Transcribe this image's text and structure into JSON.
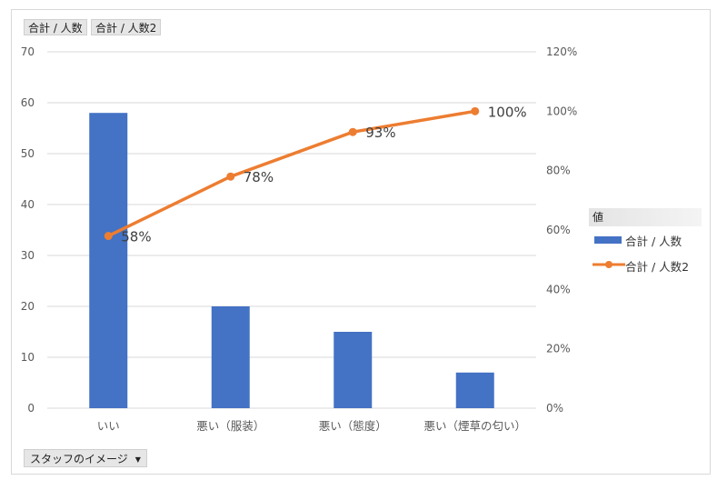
{
  "field_buttons": {
    "series1": "合計 / 人数",
    "series2": "合計 / 人数2"
  },
  "legend": {
    "title": "値",
    "items": [
      {
        "label": "合計 / 人数",
        "kind": "bar"
      },
      {
        "label": "合計 / 人数2",
        "kind": "line"
      }
    ]
  },
  "filter_button": {
    "label": "スタッフのイメージ"
  },
  "colors": {
    "bar": "#4472c4",
    "line": "#ed7d31",
    "grid": "#d9d9d9",
    "axis_text": "#595959"
  },
  "chart_data": {
    "type": "bar",
    "categories": [
      "いい",
      "悪い（服装）",
      "悪い（態度）",
      "悪い（煙草の匂い）"
    ],
    "series": [
      {
        "name": "合計 / 人数",
        "type": "bar",
        "axis": "left",
        "values": [
          58,
          20,
          15,
          7
        ]
      },
      {
        "name": "合計 / 人数2",
        "type": "line",
        "axis": "right",
        "values": [
          0.58,
          0.78,
          0.93,
          1.0
        ],
        "data_labels": [
          "58%",
          "78%",
          "93%",
          "100%"
        ]
      }
    ],
    "left_axis": {
      "min": 0,
      "max": 70,
      "step": 10,
      "ticks": [
        "0",
        "10",
        "20",
        "30",
        "40",
        "50",
        "60",
        "70"
      ]
    },
    "right_axis": {
      "min": 0,
      "max": 1.2,
      "step": 0.2,
      "ticks": [
        "0%",
        "20%",
        "40%",
        "60%",
        "80%",
        "100%",
        "120%"
      ]
    },
    "grid": true,
    "legend_position": "right"
  }
}
